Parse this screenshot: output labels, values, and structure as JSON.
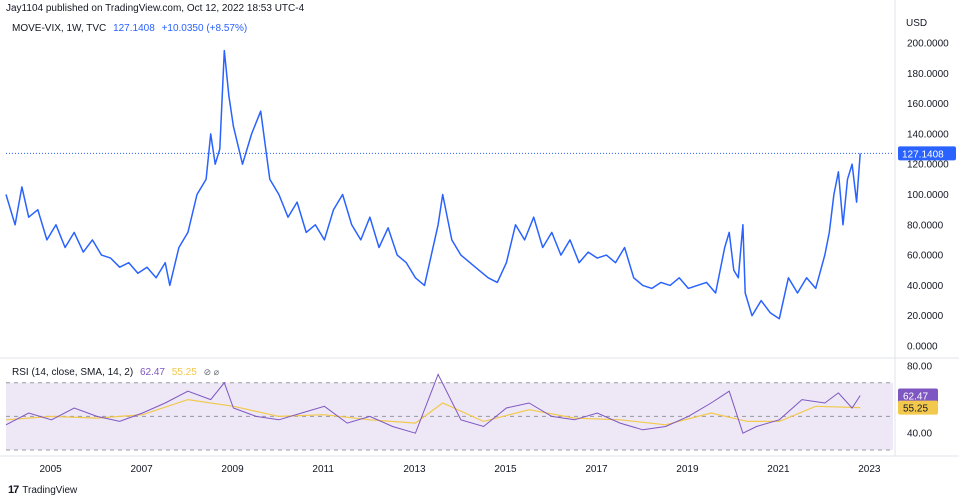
{
  "header": {
    "published": "Jay1104 published on TradingView.com, Oct 12, 2022 18:53 UTC-4",
    "currency": "USD"
  },
  "main_legend": {
    "symbol": "MOVE-VIX, 1W, TVC",
    "last": "127.1408",
    "change": "+10.0350 (+8.57%)"
  },
  "rsi_legend": {
    "label": "RSI (14, close, SMA, 14, 2)",
    "rsi": "62.47",
    "sma": "55.25",
    "icons": "⊘ ⌀"
  },
  "brand": {
    "name": "TradingView",
    "logo": "17"
  },
  "colors": {
    "line": "#2962ff",
    "rsi": "#7e57c2",
    "sma": "#f2c94c",
    "band": "#ede7f6"
  },
  "chart_data": [
    {
      "type": "line",
      "title": "",
      "series": [
        {
          "name": "MOVE-VIX",
          "points": [
            [
              2004.0,
              100
            ],
            [
              2004.2,
              80
            ],
            [
              2004.35,
              105
            ],
            [
              2004.5,
              85
            ],
            [
              2004.7,
              90
            ],
            [
              2004.9,
              70
            ],
            [
              2005.1,
              80
            ],
            [
              2005.3,
              65
            ],
            [
              2005.5,
              75
            ],
            [
              2005.7,
              62
            ],
            [
              2005.9,
              70
            ],
            [
              2006.1,
              60
            ],
            [
              2006.3,
              58
            ],
            [
              2006.5,
              52
            ],
            [
              2006.7,
              55
            ],
            [
              2006.9,
              48
            ],
            [
              2007.1,
              52
            ],
            [
              2007.3,
              45
            ],
            [
              2007.5,
              55
            ],
            [
              2007.6,
              40
            ],
            [
              2007.8,
              65
            ],
            [
              2008.0,
              75
            ],
            [
              2008.2,
              100
            ],
            [
              2008.4,
              110
            ],
            [
              2008.5,
              140
            ],
            [
              2008.6,
              120
            ],
            [
              2008.7,
              130
            ],
            [
              2008.8,
              195
            ],
            [
              2008.9,
              165
            ],
            [
              2009.0,
              145
            ],
            [
              2009.2,
              120
            ],
            [
              2009.4,
              140
            ],
            [
              2009.6,
              155
            ],
            [
              2009.8,
              110
            ],
            [
              2010.0,
              100
            ],
            [
              2010.2,
              85
            ],
            [
              2010.4,
              95
            ],
            [
              2010.6,
              75
            ],
            [
              2010.8,
              80
            ],
            [
              2011.0,
              70
            ],
            [
              2011.2,
              90
            ],
            [
              2011.4,
              100
            ],
            [
              2011.6,
              80
            ],
            [
              2011.8,
              70
            ],
            [
              2012.0,
              85
            ],
            [
              2012.2,
              65
            ],
            [
              2012.4,
              78
            ],
            [
              2012.6,
              60
            ],
            [
              2012.8,
              55
            ],
            [
              2013.0,
              45
            ],
            [
              2013.2,
              40
            ],
            [
              2013.5,
              80
            ],
            [
              2013.6,
              100
            ],
            [
              2013.8,
              70
            ],
            [
              2014.0,
              60
            ],
            [
              2014.2,
              55
            ],
            [
              2014.4,
              50
            ],
            [
              2014.6,
              45
            ],
            [
              2014.8,
              42
            ],
            [
              2015.0,
              55
            ],
            [
              2015.2,
              80
            ],
            [
              2015.4,
              70
            ],
            [
              2015.6,
              85
            ],
            [
              2015.8,
              65
            ],
            [
              2016.0,
              75
            ],
            [
              2016.2,
              60
            ],
            [
              2016.4,
              70
            ],
            [
              2016.6,
              55
            ],
            [
              2016.8,
              62
            ],
            [
              2017.0,
              58
            ],
            [
              2017.2,
              60
            ],
            [
              2017.4,
              55
            ],
            [
              2017.6,
              65
            ],
            [
              2017.8,
              45
            ],
            [
              2018.0,
              40
            ],
            [
              2018.2,
              38
            ],
            [
              2018.4,
              42
            ],
            [
              2018.6,
              40
            ],
            [
              2018.8,
              45
            ],
            [
              2019.0,
              38
            ],
            [
              2019.2,
              40
            ],
            [
              2019.4,
              42
            ],
            [
              2019.6,
              35
            ],
            [
              2019.8,
              65
            ],
            [
              2019.9,
              75
            ],
            [
              2020.0,
              50
            ],
            [
              2020.1,
              45
            ],
            [
              2020.2,
              80
            ],
            [
              2020.25,
              35
            ],
            [
              2020.4,
              20
            ],
            [
              2020.6,
              30
            ],
            [
              2020.8,
              22
            ],
            [
              2021.0,
              18
            ],
            [
              2021.2,
              45
            ],
            [
              2021.4,
              35
            ],
            [
              2021.6,
              45
            ],
            [
              2021.8,
              38
            ],
            [
              2022.0,
              60
            ],
            [
              2022.1,
              75
            ],
            [
              2022.2,
              100
            ],
            [
              2022.3,
              115
            ],
            [
              2022.4,
              80
            ],
            [
              2022.5,
              110
            ],
            [
              2022.6,
              120
            ],
            [
              2022.7,
              95
            ],
            [
              2022.78,
              127.1408
            ]
          ]
        }
      ],
      "yticks": [
        "200.0000",
        "180.0000",
        "160.0000",
        "140.0000",
        "120.0000",
        "100.0000",
        "80.0000",
        "60.0000",
        "40.0000",
        "20.0000",
        "0.0000"
      ],
      "ylim": [
        0,
        200
      ],
      "last_value": 127.1408,
      "last_label": "127.1408"
    },
    {
      "type": "line",
      "title": "",
      "series": [
        {
          "name": "RSI",
          "points": [
            [
              2004.0,
              45
            ],
            [
              2004.5,
              52
            ],
            [
              2005.0,
              48
            ],
            [
              2005.5,
              55
            ],
            [
              2006.0,
              50
            ],
            [
              2006.5,
              47
            ],
            [
              2007.0,
              52
            ],
            [
              2007.5,
              58
            ],
            [
              2008.0,
              65
            ],
            [
              2008.5,
              60
            ],
            [
              2008.8,
              70
            ],
            [
              2009.0,
              55
            ],
            [
              2009.5,
              50
            ],
            [
              2010.0,
              48
            ],
            [
              2010.5,
              52
            ],
            [
              2011.0,
              56
            ],
            [
              2011.5,
              46
            ],
            [
              2012.0,
              50
            ],
            [
              2012.5,
              44
            ],
            [
              2013.0,
              40
            ],
            [
              2013.5,
              75
            ],
            [
              2014.0,
              48
            ],
            [
              2014.5,
              44
            ],
            [
              2015.0,
              55
            ],
            [
              2015.5,
              58
            ],
            [
              2016.0,
              50
            ],
            [
              2016.5,
              48
            ],
            [
              2017.0,
              52
            ],
            [
              2017.5,
              46
            ],
            [
              2018.0,
              42
            ],
            [
              2018.5,
              44
            ],
            [
              2019.0,
              50
            ],
            [
              2019.5,
              58
            ],
            [
              2019.9,
              65
            ],
            [
              2020.2,
              40
            ],
            [
              2020.5,
              44
            ],
            [
              2021.0,
              48
            ],
            [
              2021.5,
              60
            ],
            [
              2022.0,
              58
            ],
            [
              2022.3,
              64
            ],
            [
              2022.6,
              55
            ],
            [
              2022.78,
              62.47
            ]
          ]
        },
        {
          "name": "SMA",
          "points": [
            [
              2004.0,
              48
            ],
            [
              2005.0,
              50
            ],
            [
              2006.0,
              49
            ],
            [
              2007.0,
              51
            ],
            [
              2008.0,
              60
            ],
            [
              2009.0,
              56
            ],
            [
              2010.0,
              50
            ],
            [
              2011.0,
              51
            ],
            [
              2012.0,
              48
            ],
            [
              2013.0,
              46
            ],
            [
              2013.6,
              58
            ],
            [
              2014.5,
              47
            ],
            [
              2015.5,
              54
            ],
            [
              2016.5,
              49
            ],
            [
              2017.5,
              48
            ],
            [
              2018.5,
              45
            ],
            [
              2019.5,
              52
            ],
            [
              2020.3,
              47
            ],
            [
              2021.0,
              47
            ],
            [
              2021.8,
              56
            ],
            [
              2022.78,
              55.25
            ]
          ]
        }
      ],
      "yticks": [
        "80.00",
        "40.00"
      ],
      "ylim": [
        30,
        80
      ],
      "bands": [
        70,
        50,
        30
      ],
      "rsi_label": "62.47",
      "sma_label": "55.25"
    }
  ],
  "x_axis": {
    "ticks": [
      "2005",
      "2007",
      "2009",
      "2011",
      "2013",
      "2015",
      "2017",
      "2019",
      "2021",
      "2023"
    ],
    "range": [
      2004.0,
      2023.5
    ]
  }
}
